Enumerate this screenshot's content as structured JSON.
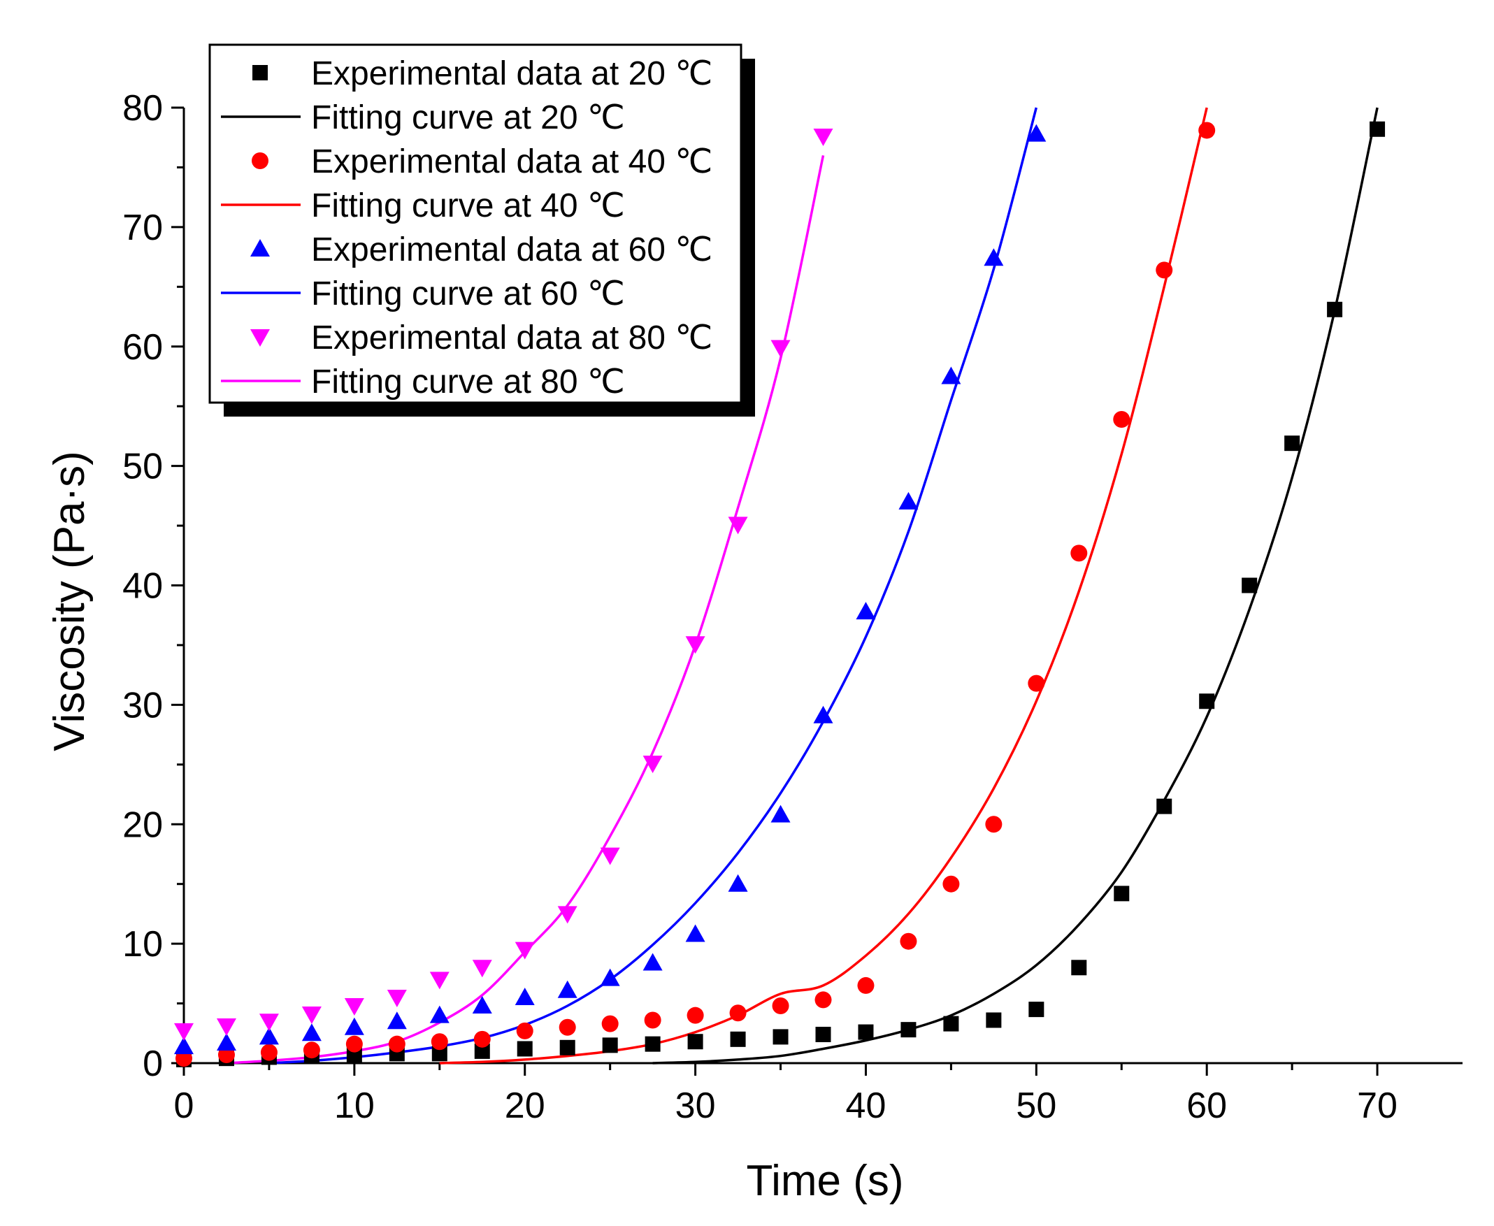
{
  "chart_data": {
    "type": "scatter",
    "title": "",
    "xlabel": "Time (s)",
    "ylabel": "Viscosity (Pa·s)",
    "xlim": [
      0,
      75
    ],
    "ylim": [
      0,
      80
    ],
    "x_ticks": [
      0,
      10,
      20,
      30,
      40,
      50,
      60,
      70
    ],
    "x_tick_labels": [
      "0",
      "10",
      "20",
      "30",
      "40",
      "50",
      "60",
      "70"
    ],
    "y_ticks": [
      0,
      10,
      20,
      30,
      40,
      50,
      60,
      70,
      80
    ],
    "y_tick_labels": [
      "0",
      "10",
      "20",
      "30",
      "40",
      "50",
      "60",
      "70",
      "80"
    ],
    "grid": false,
    "legend_position": "top-left",
    "series": [
      {
        "name": "Experimental data at 20 ℃",
        "kind": "scatter",
        "marker": "square",
        "color": "#000000",
        "x": [
          0,
          2.5,
          5,
          7.5,
          10,
          12.5,
          15,
          17.5,
          20,
          22.5,
          25,
          27.5,
          30,
          32.5,
          35,
          37.5,
          40,
          42.5,
          45,
          47.5,
          50,
          52.5,
          55,
          57.5,
          60,
          62.5,
          65,
          67.5,
          70
        ],
        "y": [
          0.3,
          0.4,
          0.5,
          0.6,
          0.7,
          0.8,
          0.8,
          1.0,
          1.2,
          1.3,
          1.5,
          1.6,
          1.8,
          2.0,
          2.2,
          2.4,
          2.6,
          2.8,
          3.3,
          3.6,
          4.5,
          8.0,
          14.2,
          21.5,
          30.3,
          40.0,
          51.9,
          63.1,
          78.2
        ]
      },
      {
        "name": "Fitting curve at 20 ℃",
        "kind": "line",
        "color": "#000000",
        "x": [
          27.5,
          30,
          32.5,
          35,
          37.5,
          40,
          42.5,
          45,
          47.5,
          50,
          52.5,
          55,
          57.5,
          60,
          62.5,
          65,
          67.5,
          70
        ],
        "y": [
          0,
          0.1,
          0.3,
          0.6,
          1.2,
          1.9,
          2.8,
          4.0,
          5.8,
          8.2,
          11.6,
          16.0,
          22.0,
          29.0,
          38.0,
          49.0,
          63.0,
          80.0
        ]
      },
      {
        "name": "Experimental data at 40 ℃",
        "kind": "scatter",
        "marker": "circle",
        "color": "#ff0000",
        "x": [
          0,
          2.5,
          5,
          7.5,
          10,
          12.5,
          15,
          17.5,
          20,
          22.5,
          25,
          27.5,
          30,
          32.5,
          35,
          37.5,
          40,
          42.5,
          45,
          47.5,
          50,
          52.5,
          55,
          57.5,
          60
        ],
        "y": [
          0.4,
          0.7,
          0.9,
          1.1,
          1.6,
          1.6,
          1.8,
          2.0,
          2.7,
          3.0,
          3.3,
          3.6,
          4.0,
          4.2,
          4.8,
          5.3,
          6.5,
          10.2,
          15.0,
          20.0,
          31.8,
          42.7,
          53.9,
          66.4,
          78.1
        ]
      },
      {
        "name": "Fitting curve at 40 ℃",
        "kind": "line",
        "color": "#ff0000",
        "x": [
          15,
          17.5,
          20,
          22.5,
          25,
          27.5,
          30,
          32.5,
          35,
          37.5,
          40,
          42.5,
          45,
          47.5,
          50,
          52.5,
          55,
          57.5,
          60
        ],
        "y": [
          0,
          0.1,
          0.3,
          0.6,
          1.0,
          1.6,
          2.6,
          4.0,
          5.8,
          6.5,
          9.0,
          12.5,
          17.2,
          23.0,
          30.3,
          39.5,
          51.0,
          65.0,
          80.0
        ]
      },
      {
        "name": "Experimental data at 60 ℃",
        "kind": "scatter",
        "marker": "triangle-up",
        "color": "#0000ff",
        "x": [
          0,
          2.5,
          5,
          7.5,
          10,
          12.5,
          15,
          17.5,
          20,
          22.5,
          25,
          27.5,
          30,
          32.5,
          35,
          37.5,
          40,
          42.5,
          45,
          47.5,
          50
        ],
        "y": [
          1.4,
          1.7,
          2.2,
          2.5,
          3.0,
          3.5,
          4.0,
          4.8,
          5.5,
          6.1,
          7.1,
          8.4,
          10.8,
          15.0,
          20.8,
          29.1,
          37.8,
          47.0,
          57.5,
          67.4,
          77.8
        ]
      },
      {
        "name": "Fitting curve at 60 ℃",
        "kind": "line",
        "color": "#0000ff",
        "x": [
          5,
          7.5,
          10,
          12.5,
          15,
          17.5,
          20,
          22.5,
          25,
          27.5,
          30,
          32.5,
          35,
          37.5,
          40,
          42.5,
          45,
          47.5,
          50
        ],
        "y": [
          0,
          0.2,
          0.5,
          0.9,
          1.4,
          2.1,
          3.2,
          4.8,
          7.0,
          9.9,
          13.4,
          17.6,
          22.6,
          28.6,
          35.7,
          44.5,
          55.5,
          66.5,
          80.0
        ]
      },
      {
        "name": "Experimental data at 80 ℃",
        "kind": "scatter",
        "marker": "triangle-down",
        "color": "#ff00ff",
        "x": [
          0,
          2.5,
          5,
          7.5,
          10,
          12.5,
          15,
          17.5,
          20,
          22.5,
          25,
          27.5,
          30,
          32.5,
          35,
          37.5
        ],
        "y": [
          2.7,
          3.1,
          3.5,
          4.1,
          4.8,
          5.5,
          7.0,
          8.0,
          9.5,
          12.5,
          17.4,
          25.1,
          35.1,
          45.1,
          59.9,
          77.6
        ]
      },
      {
        "name": "Fitting curve at 80 ℃",
        "kind": "line",
        "color": "#ff00ff",
        "x": [
          2.5,
          5,
          7.5,
          10,
          12.5,
          15,
          17.5,
          20,
          22.5,
          25,
          27.5,
          30,
          32.5,
          35,
          37.5
        ],
        "y": [
          0,
          0.2,
          0.5,
          1.0,
          1.8,
          3.4,
          5.7,
          9.3,
          13.2,
          19.0,
          26.0,
          35.0,
          46.5,
          59.0,
          76.0
        ]
      }
    ]
  }
}
